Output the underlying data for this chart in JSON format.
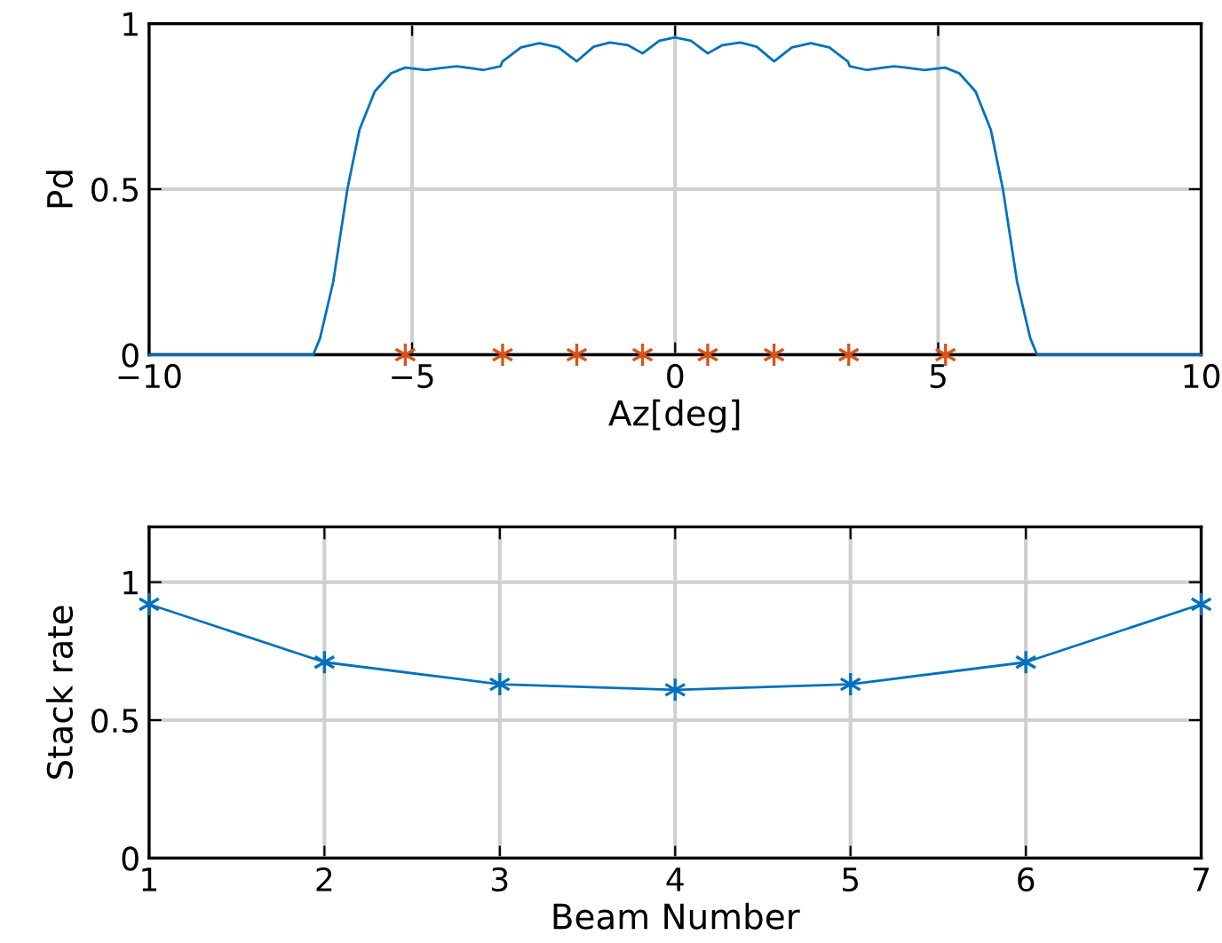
{
  "chart_data": [
    {
      "type": "line",
      "xlabel": "Az[deg]",
      "ylabel": "Pd",
      "xlim": [
        -10,
        10
      ],
      "ylim": [
        0,
        1
      ],
      "xticks": [
        {
          "value": -10,
          "label": "−10"
        },
        {
          "value": -5,
          "label": "−5"
        },
        0,
        5,
        10
      ],
      "yticks": [
        0,
        0.5,
        1
      ],
      "grid": true,
      "legend": false,
      "series": [
        {
          "color": "#0072bd",
          "marker": "none",
          "line_style": "solid",
          "x": [
            -10,
            -7.0,
            -6.88,
            -6.75,
            -6.5,
            -6.23,
            -6.0,
            -5.71,
            -5.4,
            -5.13,
            -4.74,
            -4.45,
            -4.16,
            -3.9,
            -3.64,
            -3.32,
            -3.28,
            -2.93,
            -2.58,
            -2.22,
            -1.87,
            -1.55,
            -1.24,
            -0.9,
            -0.62,
            -0.3,
            0,
            0.3,
            0.62,
            0.9,
            1.24,
            1.55,
            1.88,
            2.22,
            2.58,
            2.93,
            3.28,
            3.32,
            3.64,
            3.9,
            4.16,
            4.45,
            4.74,
            5.13,
            5.4,
            5.71,
            6.0,
            6.23,
            6.5,
            6.75,
            6.88,
            7.0,
            10
          ],
          "values": [
            0,
            0,
            0.0,
            0.05,
            0.22,
            0.5,
            0.68,
            0.795,
            0.85,
            0.867,
            0.86,
            0.866,
            0.871,
            0.866,
            0.86,
            0.871,
            0.886,
            0.928,
            0.941,
            0.928,
            0.886,
            0.93,
            0.943,
            0.935,
            0.91,
            0.948,
            0.958,
            0.948,
            0.91,
            0.935,
            0.943,
            0.93,
            0.886,
            0.928,
            0.941,
            0.928,
            0.886,
            0.871,
            0.86,
            0.866,
            0.871,
            0.866,
            0.86,
            0.867,
            0.85,
            0.795,
            0.68,
            0.5,
            0.22,
            0.05,
            0.0,
            0,
            0
          ]
        },
        {
          "type": "scatter",
          "color": "#d95319",
          "marker": "cross",
          "x": [
            -5.13,
            -3.28,
            -1.87,
            -0.62,
            0.62,
            1.88,
            3.3,
            5.14
          ],
          "values": [
            0,
            0,
            0,
            0,
            0,
            0,
            0,
            0
          ]
        }
      ]
    },
    {
      "type": "line",
      "xlabel": "Beam Number",
      "ylabel": "Stack rate",
      "xlim": [
        1,
        7
      ],
      "ylim": [
        0,
        1.2
      ],
      "xticks": [
        1,
        2,
        3,
        4,
        5,
        6,
        7
      ],
      "yticks": [
        0,
        0.5,
        1
      ],
      "grid": true,
      "legend": false,
      "series": [
        {
          "color": "#0072bd",
          "marker": "cross",
          "line_style": "solid",
          "x": [
            1,
            2,
            3,
            4,
            5,
            6,
            7
          ],
          "values": [
            0.92,
            0.71,
            0.63,
            0.61,
            0.63,
            0.71,
            0.92
          ]
        }
      ]
    }
  ]
}
